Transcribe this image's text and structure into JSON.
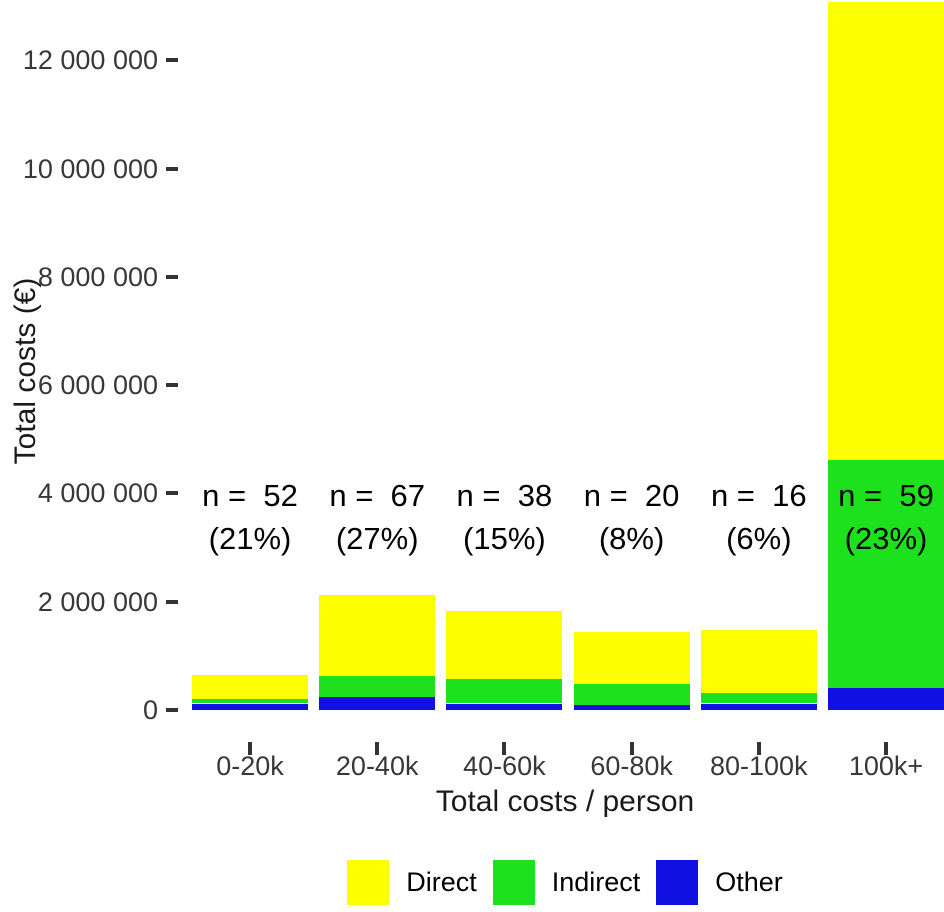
{
  "chart_data": {
    "type": "bar",
    "stacked": true,
    "title": "",
    "xlabel": "Total costs / person",
    "ylabel": "Total costs (€)",
    "legend_position": "bottom",
    "grid": false,
    "ylim": [
      0,
      13110000
    ],
    "categories": [
      "0-20k",
      "20-40k",
      "40-60k",
      "60-80k",
      "80-100k",
      "100k+"
    ],
    "series": [
      {
        "name": "Direct",
        "color": "#FDFF00",
        "values": [
          440000,
          1500000,
          1260000,
          960000,
          1165000,
          8460000
        ]
      },
      {
        "name": "Indirect",
        "color": "#1EE11E",
        "values": [
          90000,
          385000,
          450000,
          390000,
          195000,
          4210000
        ]
      },
      {
        "name": "Other",
        "color": "#1010E0",
        "values": [
          120000,
          240000,
          120000,
          90000,
          120000,
          410000
        ]
      }
    ],
    "stack_order_bottom_to_top": [
      "Other",
      "Indirect",
      "Direct"
    ],
    "totals": [
      650000,
      2125000,
      1830000,
      1440000,
      1480000,
      13080000
    ],
    "annotations": [
      {
        "line1": "n =  52",
        "line2": "(21%)"
      },
      {
        "line1": "n =  67",
        "line2": "(27%)"
      },
      {
        "line1": "n =  38",
        "line2": "(15%)"
      },
      {
        "line1": "n =  20",
        "line2": "(8%)"
      },
      {
        "line1": "n =  16",
        "line2": "(6%)"
      },
      {
        "line1": "n =  59",
        "line2": "(23%)"
      }
    ],
    "y_ticks": [
      {
        "value": 0,
        "label": "0"
      },
      {
        "value": 2000000,
        "label": "2 000 000"
      },
      {
        "value": 4000000,
        "label": "4 000 000"
      },
      {
        "value": 6000000,
        "label": "6 000 000"
      },
      {
        "value": 8000000,
        "label": "8 000 000"
      },
      {
        "value": 10000000,
        "label": "10 000 000"
      },
      {
        "value": 12000000,
        "label": "12 000 000"
      }
    ]
  }
}
